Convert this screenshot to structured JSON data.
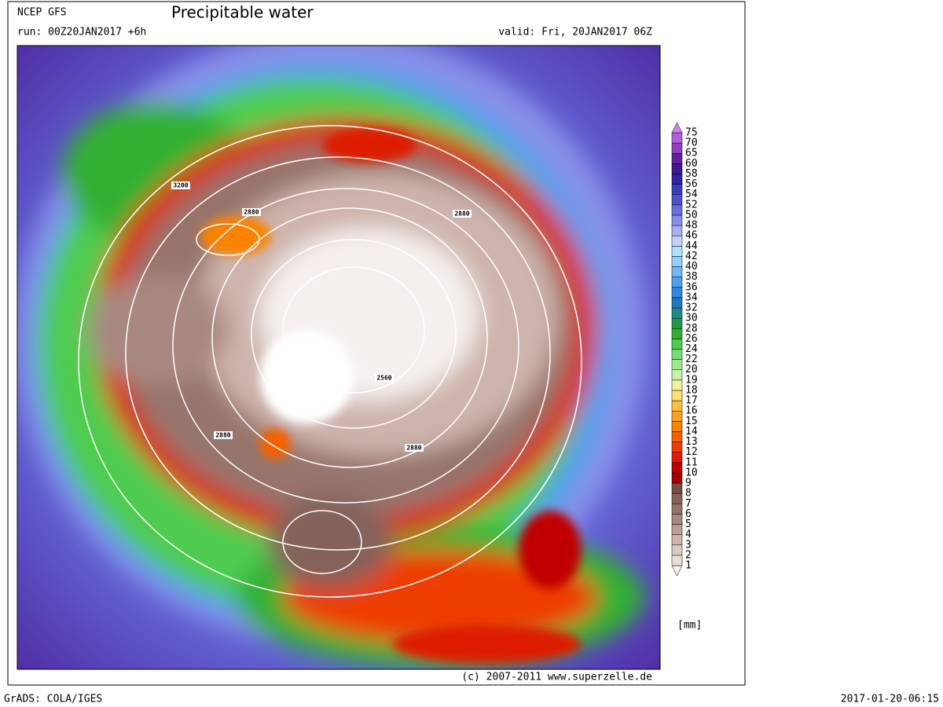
{
  "header": {
    "model": "NCEP GFS",
    "title": "Precipitable water",
    "run": "run: 00Z20JAN2017 +6h",
    "valid": "valid: Fri, 20JAN2017 06Z"
  },
  "map": {
    "contour_labels": [
      3200,
      2880,
      2880,
      2560,
      2880,
      2880
    ]
  },
  "legend": {
    "levels": [
      1,
      2,
      3,
      4,
      5,
      6,
      7,
      8,
      9,
      10,
      11,
      12,
      13,
      14,
      15,
      16,
      17,
      18,
      19,
      20,
      22,
      24,
      26,
      28,
      30,
      32,
      34,
      36,
      38,
      40,
      42,
      44,
      46,
      48,
      50,
      52,
      54,
      56,
      58,
      60,
      65,
      70,
      75
    ],
    "colors": [
      "#f5f0ee",
      "#e8dcd8",
      "#dccac4",
      "#cdb4ac",
      "#bb9e94",
      "#a88880",
      "#96746c",
      "#84625a",
      "#724e48",
      "#a00000",
      "#c00000",
      "#dd1a00",
      "#ee3c00",
      "#f56000",
      "#fa8200",
      "#fca020",
      "#fdc040",
      "#fde070",
      "#f0f0a0",
      "#c8f0a8",
      "#a0e890",
      "#78dc78",
      "#50cc50",
      "#30b030",
      "#209848",
      "#208888",
      "#2078c0",
      "#3088e0",
      "#50a0f0",
      "#70b8f8",
      "#90d0fc",
      "#b0e0fc",
      "#c8d0f8",
      "#a8b0f0",
      "#8890e8",
      "#6870e0",
      "#5050d0",
      "#3c3cc0",
      "#3020a8",
      "#401890",
      "#6020a0",
      "#9040c0",
      "#b060d8",
      "#d080f0"
    ],
    "unit": "[mm]"
  },
  "footer": {
    "copyright": "(c) 2007-2011 www.superzelle.de",
    "software": "GrADS: COLA/IGES",
    "timestamp": "2017-01-20-06:15"
  }
}
